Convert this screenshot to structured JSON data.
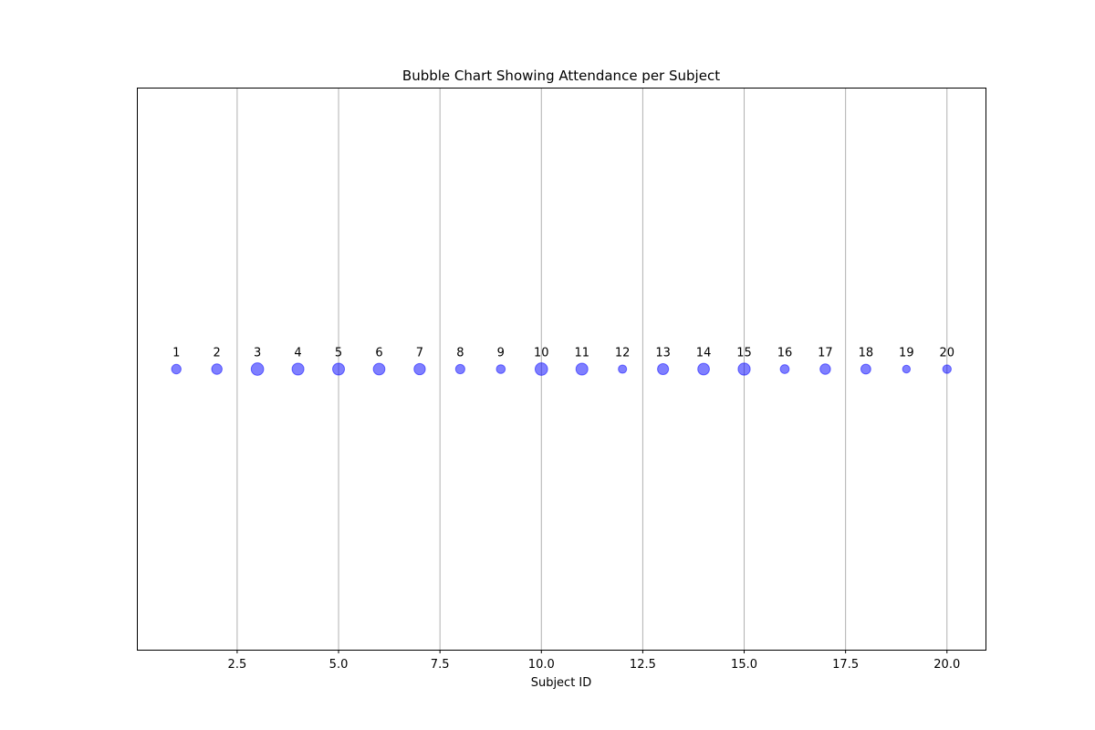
{
  "chart_data": {
    "type": "scatter",
    "title": "Bubble Chart Showing Attendance per Subject",
    "xlabel": "Subject ID",
    "ylabel": "",
    "xlim": [
      0.05,
      20.95
    ],
    "ylim": [
      -1,
      1
    ],
    "xticks": [
      2.5,
      5.0,
      7.5,
      10.0,
      12.5,
      15.0,
      17.5,
      20.0
    ],
    "xtick_labels": [
      "2.5",
      "5.0",
      "7.5",
      "10.0",
      "12.5",
      "15.0",
      "17.5",
      "20.0"
    ],
    "grid": "x-axis vertical lines",
    "y_ticks_visible": false,
    "bubble_color": "#0000ff",
    "bubble_alpha": 0.5,
    "points": [
      {
        "x": 1,
        "y": 0,
        "label": "1",
        "size": 0.8
      },
      {
        "x": 2,
        "y": 0,
        "label": "2",
        "size": 0.88
      },
      {
        "x": 3,
        "y": 0,
        "label": "3",
        "size": 1.05
      },
      {
        "x": 4,
        "y": 0,
        "label": "4",
        "size": 1.0
      },
      {
        "x": 5,
        "y": 0,
        "label": "5",
        "size": 1.0
      },
      {
        "x": 6,
        "y": 0,
        "label": "6",
        "size": 0.98
      },
      {
        "x": 7,
        "y": 0,
        "label": "7",
        "size": 0.95
      },
      {
        "x": 8,
        "y": 0,
        "label": "8",
        "size": 0.78
      },
      {
        "x": 9,
        "y": 0,
        "label": "9",
        "size": 0.74
      },
      {
        "x": 10,
        "y": 0,
        "label": "10",
        "size": 1.05
      },
      {
        "x": 11,
        "y": 0,
        "label": "11",
        "size": 1.0
      },
      {
        "x": 12,
        "y": 0,
        "label": "12",
        "size": 0.7
      },
      {
        "x": 13,
        "y": 0,
        "label": "13",
        "size": 0.93
      },
      {
        "x": 14,
        "y": 0,
        "label": "14",
        "size": 0.98
      },
      {
        "x": 15,
        "y": 0,
        "label": "15",
        "size": 1.02
      },
      {
        "x": 16,
        "y": 0,
        "label": "16",
        "size": 0.75
      },
      {
        "x": 17,
        "y": 0,
        "label": "17",
        "size": 0.88
      },
      {
        "x": 18,
        "y": 0,
        "label": "18",
        "size": 0.83
      },
      {
        "x": 19,
        "y": 0,
        "label": "19",
        "size": 0.65
      },
      {
        "x": 20,
        "y": 0,
        "label": "20",
        "size": 0.72
      }
    ]
  }
}
